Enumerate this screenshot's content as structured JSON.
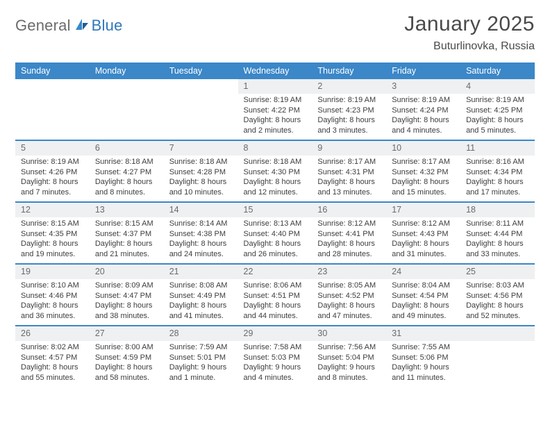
{
  "brand": {
    "part1": "General",
    "part2": "Blue"
  },
  "title": "January 2025",
  "location": "Buturlinovka, Russia",
  "colors": {
    "header_bg": "#3b87c8",
    "header_text": "#ffffff",
    "daynum_bg": "#eef0f2",
    "rule": "#3b87c8",
    "brand_gray": "#6b6b6b",
    "brand_blue": "#2f77b8",
    "body_text": "#3d3d3d"
  },
  "weekdays": [
    "Sunday",
    "Monday",
    "Tuesday",
    "Wednesday",
    "Thursday",
    "Friday",
    "Saturday"
  ],
  "weeks": [
    [
      null,
      null,
      null,
      {
        "n": "1",
        "sr": "8:19 AM",
        "ss": "4:22 PM",
        "dl": "8 hours and 2 minutes."
      },
      {
        "n": "2",
        "sr": "8:19 AM",
        "ss": "4:23 PM",
        "dl": "8 hours and 3 minutes."
      },
      {
        "n": "3",
        "sr": "8:19 AM",
        "ss": "4:24 PM",
        "dl": "8 hours and 4 minutes."
      },
      {
        "n": "4",
        "sr": "8:19 AM",
        "ss": "4:25 PM",
        "dl": "8 hours and 5 minutes."
      }
    ],
    [
      {
        "n": "5",
        "sr": "8:19 AM",
        "ss": "4:26 PM",
        "dl": "8 hours and 7 minutes."
      },
      {
        "n": "6",
        "sr": "8:18 AM",
        "ss": "4:27 PM",
        "dl": "8 hours and 8 minutes."
      },
      {
        "n": "7",
        "sr": "8:18 AM",
        "ss": "4:28 PM",
        "dl": "8 hours and 10 minutes."
      },
      {
        "n": "8",
        "sr": "8:18 AM",
        "ss": "4:30 PM",
        "dl": "8 hours and 12 minutes."
      },
      {
        "n": "9",
        "sr": "8:17 AM",
        "ss": "4:31 PM",
        "dl": "8 hours and 13 minutes."
      },
      {
        "n": "10",
        "sr": "8:17 AM",
        "ss": "4:32 PM",
        "dl": "8 hours and 15 minutes."
      },
      {
        "n": "11",
        "sr": "8:16 AM",
        "ss": "4:34 PM",
        "dl": "8 hours and 17 minutes."
      }
    ],
    [
      {
        "n": "12",
        "sr": "8:15 AM",
        "ss": "4:35 PM",
        "dl": "8 hours and 19 minutes."
      },
      {
        "n": "13",
        "sr": "8:15 AM",
        "ss": "4:37 PM",
        "dl": "8 hours and 21 minutes."
      },
      {
        "n": "14",
        "sr": "8:14 AM",
        "ss": "4:38 PM",
        "dl": "8 hours and 24 minutes."
      },
      {
        "n": "15",
        "sr": "8:13 AM",
        "ss": "4:40 PM",
        "dl": "8 hours and 26 minutes."
      },
      {
        "n": "16",
        "sr": "8:12 AM",
        "ss": "4:41 PM",
        "dl": "8 hours and 28 minutes."
      },
      {
        "n": "17",
        "sr": "8:12 AM",
        "ss": "4:43 PM",
        "dl": "8 hours and 31 minutes."
      },
      {
        "n": "18",
        "sr": "8:11 AM",
        "ss": "4:44 PM",
        "dl": "8 hours and 33 minutes."
      }
    ],
    [
      {
        "n": "19",
        "sr": "8:10 AM",
        "ss": "4:46 PM",
        "dl": "8 hours and 36 minutes."
      },
      {
        "n": "20",
        "sr": "8:09 AM",
        "ss": "4:47 PM",
        "dl": "8 hours and 38 minutes."
      },
      {
        "n": "21",
        "sr": "8:08 AM",
        "ss": "4:49 PM",
        "dl": "8 hours and 41 minutes."
      },
      {
        "n": "22",
        "sr": "8:06 AM",
        "ss": "4:51 PM",
        "dl": "8 hours and 44 minutes."
      },
      {
        "n": "23",
        "sr": "8:05 AM",
        "ss": "4:52 PM",
        "dl": "8 hours and 47 minutes."
      },
      {
        "n": "24",
        "sr": "8:04 AM",
        "ss": "4:54 PM",
        "dl": "8 hours and 49 minutes."
      },
      {
        "n": "25",
        "sr": "8:03 AM",
        "ss": "4:56 PM",
        "dl": "8 hours and 52 minutes."
      }
    ],
    [
      {
        "n": "26",
        "sr": "8:02 AM",
        "ss": "4:57 PM",
        "dl": "8 hours and 55 minutes."
      },
      {
        "n": "27",
        "sr": "8:00 AM",
        "ss": "4:59 PM",
        "dl": "8 hours and 58 minutes."
      },
      {
        "n": "28",
        "sr": "7:59 AM",
        "ss": "5:01 PM",
        "dl": "9 hours and 1 minute."
      },
      {
        "n": "29",
        "sr": "7:58 AM",
        "ss": "5:03 PM",
        "dl": "9 hours and 4 minutes."
      },
      {
        "n": "30",
        "sr": "7:56 AM",
        "ss": "5:04 PM",
        "dl": "9 hours and 8 minutes."
      },
      {
        "n": "31",
        "sr": "7:55 AM",
        "ss": "5:06 PM",
        "dl": "9 hours and 11 minutes."
      },
      null
    ]
  ],
  "labels": {
    "sunrise": "Sunrise:",
    "sunset": "Sunset:",
    "daylight": "Daylight:"
  }
}
